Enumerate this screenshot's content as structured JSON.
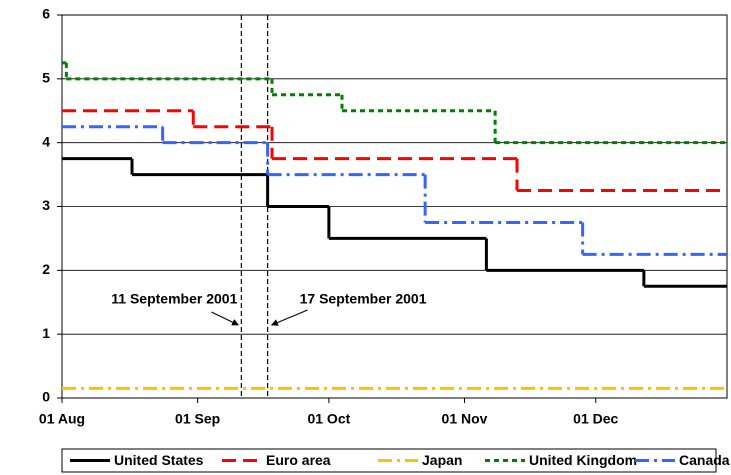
{
  "chart_data": {
    "type": "line",
    "step": "post",
    "xlim": [
      "01 Aug",
      "31 Dec"
    ],
    "xticks": [
      "01 Aug",
      "01 Sep",
      "01 Oct",
      "01 Nov",
      "01 Dec"
    ],
    "ylim": [
      0,
      6
    ],
    "yticks": [
      0,
      1,
      2,
      3,
      4,
      5,
      6
    ],
    "grid": true,
    "legend": "bottom",
    "series": [
      {
        "name": "United States",
        "color": "#000000",
        "dash": "solid",
        "x": [
          "01 Aug",
          "17 Aug",
          "17 Sep",
          "01 Oct",
          "06 Nov",
          "12 Dec"
        ],
        "values": [
          3.75,
          3.5,
          3.0,
          2.5,
          2.0,
          1.75
        ]
      },
      {
        "name": "Euro area",
        "color": "#ff0000",
        "dash": "dashed",
        "x": [
          "01 Aug",
          "31 Aug",
          "18 Sep",
          "13 Nov"
        ],
        "values": [
          4.5,
          4.25,
          3.75,
          3.25
        ]
      },
      {
        "name": "Japan",
        "color": "#ffc000",
        "dash": "dashdot",
        "x": [
          "01 Aug"
        ],
        "values": [
          0.15
        ]
      },
      {
        "name": "United Kingdom",
        "color": "#008000",
        "dash": "dotted",
        "x": [
          "01 Aug",
          "02 Aug",
          "18 Sep",
          "04 Oct",
          "08 Nov"
        ],
        "values": [
          5.25,
          5.0,
          4.75,
          4.5,
          4.0
        ]
      },
      {
        "name": "Canada",
        "color": "#3366ff",
        "dash": "dashdot",
        "x": [
          "01 Aug",
          "24 Aug",
          "17 Sep",
          "23 Oct",
          "28 Nov"
        ],
        "values": [
          4.25,
          4.0,
          3.5,
          2.75,
          2.25
        ]
      }
    ],
    "event_lines": [
      {
        "x": "11 Sep",
        "label": "11 September 2001"
      },
      {
        "x": "17 Sep",
        "label": "17 September 2001"
      }
    ]
  }
}
